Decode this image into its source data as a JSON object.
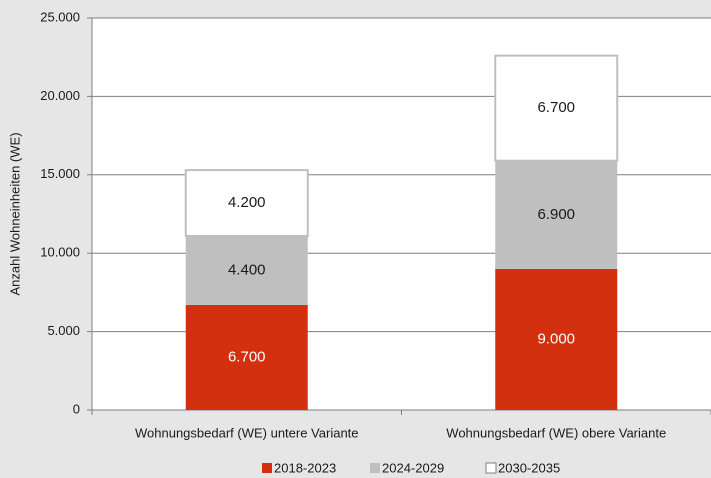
{
  "chart_data": {
    "type": "stacked_bar",
    "y_axis_label": "Anzahl Wohneinheiten (WE)",
    "categories": [
      "Wohnungsbedarf (WE) untere Variante",
      "Wohnungsbedarf (WE) obere Variante"
    ],
    "series": [
      {
        "name": "2018-2023",
        "color": "#d2300e",
        "label_color": "#ffffff",
        "values": [
          6700,
          9000
        ],
        "value_labels": [
          "6.700",
          "9.000"
        ]
      },
      {
        "name": "2024-2029",
        "color": "#bfbfbf",
        "label_color": "#1a1a1a",
        "values": [
          4400,
          6900
        ],
        "value_labels": [
          "4.400",
          "6.900"
        ]
      },
      {
        "name": "2030-2035",
        "color": "#ffffff",
        "label_color": "#1a1a1a",
        "values": [
          4200,
          6700
        ],
        "value_labels": [
          "4.200",
          "6.700"
        ]
      }
    ],
    "ylim": [
      0,
      25000
    ],
    "yticks": [
      {
        "value": 0,
        "label": "0"
      },
      {
        "value": 5000,
        "label": "5.000"
      },
      {
        "value": 10000,
        "label": "10.000"
      },
      {
        "value": 15000,
        "label": "15.000"
      },
      {
        "value": 20000,
        "label": "20.000"
      },
      {
        "value": 25000,
        "label": "25.000"
      }
    ],
    "grid": true
  }
}
